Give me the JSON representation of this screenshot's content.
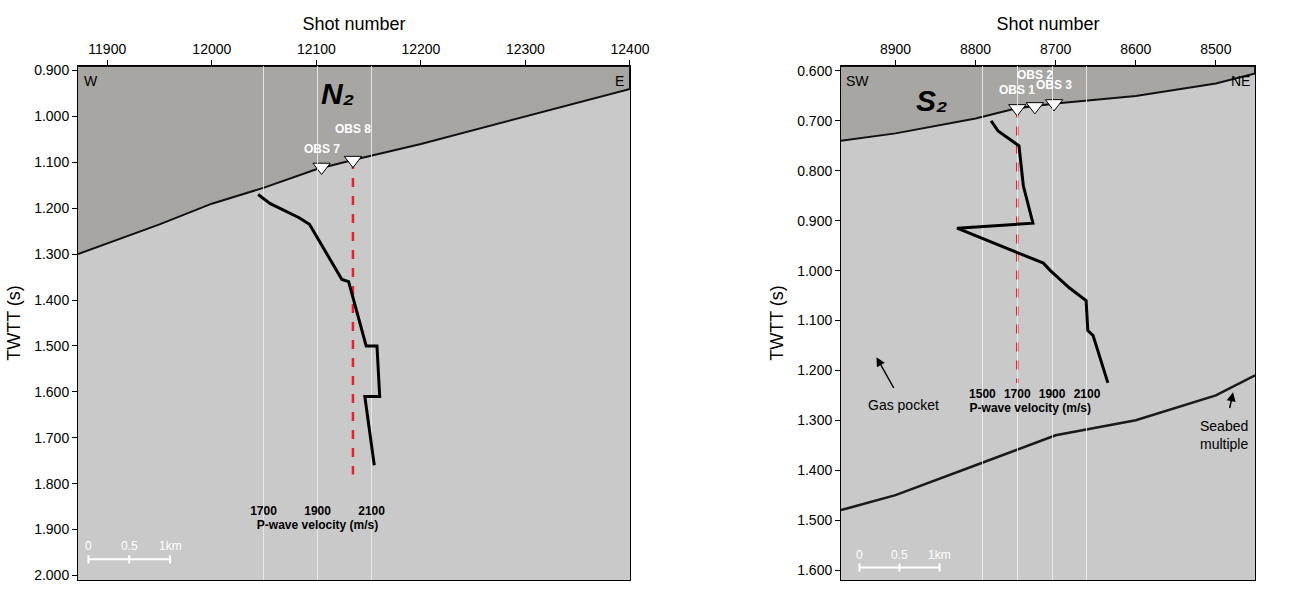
{
  "chart_data": [
    {
      "type": "seismic_section",
      "title": "N₂",
      "title_at": [
        12120,
        0.95
      ],
      "x_title": "Shot number",
      "y_title": "TWTT (s)",
      "corner_labels": [
        "W",
        "E"
      ],
      "xlim": [
        11872,
        12400
      ],
      "xticks": [
        11900,
        12000,
        12100,
        12200,
        12300,
        12400
      ],
      "ylim": [
        2.01,
        0.89
      ],
      "yticks": [
        {
          "value": 0.9,
          "label": "0.900"
        },
        {
          "value": 1.0,
          "label": "1.000"
        },
        {
          "value": 1.1,
          "label": "1.100"
        },
        {
          "value": 1.2,
          "label": "1.200"
        },
        {
          "value": 1.3,
          "label": "1.300"
        },
        {
          "value": 1.4,
          "label": "1.400"
        },
        {
          "value": 1.5,
          "label": "1.500"
        },
        {
          "value": 1.6,
          "label": "1.600"
        },
        {
          "value": 1.7,
          "label": "1.700"
        },
        {
          "value": 1.8,
          "label": "1.800"
        },
        {
          "value": 1.9,
          "label": "1.900"
        },
        {
          "value": 2.0,
          "label": "2.000"
        }
      ],
      "seabed": {
        "x": [
          11872,
          11950,
          12000,
          12050,
          12100,
          12135,
          12200,
          12300,
          12400
        ],
        "y": [
          1.3,
          1.235,
          1.19,
          1.155,
          1.115,
          1.095,
          1.06,
          1.0,
          0.94
        ]
      },
      "obs": {
        "labels": [
          "OBS 7",
          "OBS 8"
        ],
        "x": [
          12105,
          12135
        ],
        "y": [
          1.11,
          1.095
        ]
      },
      "obs_line": {
        "color": "#e8212b",
        "line_style": "dash",
        "x": [
          12135,
          12135
        ],
        "y": [
          1.095,
          1.78
        ]
      },
      "velocity_profile": {
        "color": "#000000",
        "values": [
          1680,
          1725,
          1830,
          1870,
          1990,
          2015,
          2080,
          2120,
          2130,
          2075,
          2110
        ],
        "twtt": [
          1.17,
          1.19,
          1.22,
          1.235,
          1.355,
          1.36,
          1.5,
          1.5,
          1.61,
          1.61,
          1.76
        ]
      },
      "velocity_axis": {
        "title": "P-wave velocity (m/s)",
        "xlim": [
          1600,
          2200
        ],
        "xticks": [
          1700,
          1900,
          2100
        ]
      },
      "scale_bar": {
        "labels": [
          "0",
          "0.5",
          "1km"
        ],
        "x": [
          11882,
          11921,
          11960
        ],
        "y": 1.965
      },
      "annotations": []
    },
    {
      "type": "seismic_section",
      "title": "S₂",
      "title_at": [
        8855,
        0.66
      ],
      "x_title": "Shot number",
      "y_title": "TWTT (s)",
      "corner_labels": [
        "SW",
        "NE"
      ],
      "xlim": [
        8968,
        8451
      ],
      "xticks": [
        8900,
        8800,
        8700,
        8600,
        8500
      ],
      "ylim": [
        1.62,
        0.59
      ],
      "yticks": [
        {
          "value": 0.6,
          "label": "0.600"
        },
        {
          "value": 0.7,
          "label": "0.700"
        },
        {
          "value": 0.8,
          "label": "0.800"
        },
        {
          "value": 0.9,
          "label": "0.900"
        },
        {
          "value": 1.0,
          "label": "1.000"
        },
        {
          "value": 1.1,
          "label": "1.100"
        },
        {
          "value": 1.2,
          "label": "1.200"
        },
        {
          "value": 1.3,
          "label": "1.300"
        },
        {
          "value": 1.4,
          "label": "1.400"
        },
        {
          "value": 1.5,
          "label": "1.500"
        },
        {
          "value": 1.6,
          "label": "1.600"
        }
      ],
      "seabed": {
        "x": [
          8968,
          8900,
          8800,
          8750,
          8700,
          8600,
          8500,
          8451
        ],
        "y": [
          0.74,
          0.725,
          0.695,
          0.675,
          0.665,
          0.65,
          0.625,
          0.605
        ]
      },
      "obs": {
        "labels": [
          "OBS 1",
          "OBS 2",
          "OBS 3"
        ],
        "x": [
          8748,
          8726,
          8702
        ],
        "y": [
          0.675,
          0.671,
          0.665
        ]
      },
      "obs_line": {
        "color": "#e8212b",
        "line_style": "dash",
        "x": [
          8748,
          8748
        ],
        "y": [
          0.675,
          1.225
        ]
      },
      "velocity_profile": {
        "color": "#000000",
        "values": [
          1550,
          1590,
          1710,
          1735,
          1790,
          1355,
          1850,
          1890,
          2000,
          2095,
          2105,
          2135,
          2220
        ],
        "twtt": [
          0.7,
          0.72,
          0.75,
          0.83,
          0.905,
          0.915,
          0.985,
          1.0,
          1.035,
          1.06,
          1.12,
          1.13,
          1.225
        ]
      },
      "velocity_axis": {
        "title": "P-wave velocity (m/s)",
        "xlim": [
          1300,
          2250
        ],
        "xticks": [
          1500,
          1700,
          1900,
          2100
        ]
      },
      "seabed_multiple": {
        "color": "#1a1a1a",
        "x": [
          8968,
          8900,
          8800,
          8700,
          8600,
          8500,
          8451
        ],
        "y": [
          1.48,
          1.45,
          1.39,
          1.33,
          1.3,
          1.25,
          1.21
        ]
      },
      "scale_bar": {
        "labels": [
          "0",
          "0.5",
          "1km"
        ],
        "x": [
          8945,
          8895,
          8845
        ],
        "y": 1.595
      },
      "annotations": [
        {
          "text": "Gas pocket",
          "x": 8925,
          "y": 1.17,
          "ax": 8890,
          "ay": 1.27
        },
        {
          "text": "Seabed multiple",
          "x": 8478,
          "y": 1.24,
          "ax": 8490,
          "ay": 1.33
        }
      ]
    }
  ]
}
